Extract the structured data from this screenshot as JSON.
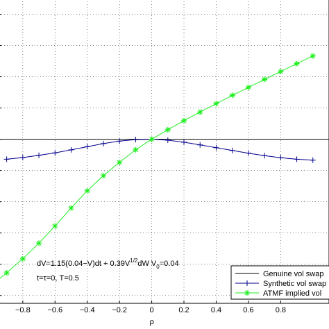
{
  "chart_data": {
    "type": "line",
    "xlabel": "ρ",
    "xlim": [
      -0.95,
      1.1
    ],
    "ylim": [
      -0.105,
      0.09
    ],
    "x_ticks": [
      -0.8,
      -0.6,
      -0.4,
      -0.2,
      0,
      0.2,
      0.4,
      0.6,
      0.8
    ],
    "x_tick_labels": [
      "−0.8",
      "−0.6",
      "−0.4",
      "−0.2",
      "0",
      "0.2",
      "0.4",
      "0.6",
      "0.8"
    ],
    "y_gridlines": [
      -0.1,
      -0.08,
      -0.06,
      -0.04,
      -0.02,
      0,
      0.02,
      0.04,
      0.06,
      0.08
    ],
    "grid": true,
    "legend_position": "bottom-right",
    "annotations": {
      "line1_main": "dV=1.15(0.04−V)dt + 0.39V",
      "line1_sup": "1/2",
      "line1_tail": "dW    V",
      "line1_sub": "0",
      "line1_end": "=0.04",
      "line2": "t=τ=0,  T=0.5"
    },
    "series": [
      {
        "name": "Genuine vol swap",
        "color": "#000000",
        "marker": "none",
        "x": [
          -0.95,
          1.1
        ],
        "y": [
          0.0,
          0.0
        ]
      },
      {
        "name": "Synthetic vol swap",
        "color": "#00008b",
        "marker": "plus",
        "x": [
          -0.9,
          -0.8,
          -0.7,
          -0.6,
          -0.5,
          -0.4,
          -0.3,
          -0.2,
          -0.1,
          0,
          0.1,
          0.2,
          0.3,
          0.4,
          0.5,
          0.6,
          0.7,
          0.8,
          0.9,
          1.0
        ],
        "y": [
          -0.0128,
          -0.0117,
          -0.0103,
          -0.0087,
          -0.0068,
          -0.0048,
          -0.0028,
          -0.0012,
          -0.0002,
          0.0,
          -0.0006,
          -0.0019,
          -0.0036,
          -0.0054,
          -0.0072,
          -0.0089,
          -0.0105,
          -0.0118,
          -0.0128,
          -0.0134
        ]
      },
      {
        "name": "ATMF implied vol",
        "color": "#22ee22",
        "marker": "star",
        "x": [
          -1.0,
          -0.9,
          -0.8,
          -0.7,
          -0.6,
          -0.5,
          -0.4,
          -0.3,
          -0.2,
          -0.1,
          0,
          0.1,
          0.2,
          0.3,
          0.4,
          0.5,
          0.6,
          0.7,
          0.8,
          0.9,
          1.0
        ],
        "y": [
          -0.094,
          -0.0855,
          -0.0765,
          -0.0665,
          -0.0555,
          -0.044,
          -0.033,
          -0.0233,
          -0.0148,
          -0.0068,
          0.0,
          0.0061,
          0.0119,
          0.0174,
          0.0228,
          0.0281,
          0.0332,
          0.0383,
          0.0433,
          0.0484,
          0.0533
        ]
      }
    ]
  }
}
